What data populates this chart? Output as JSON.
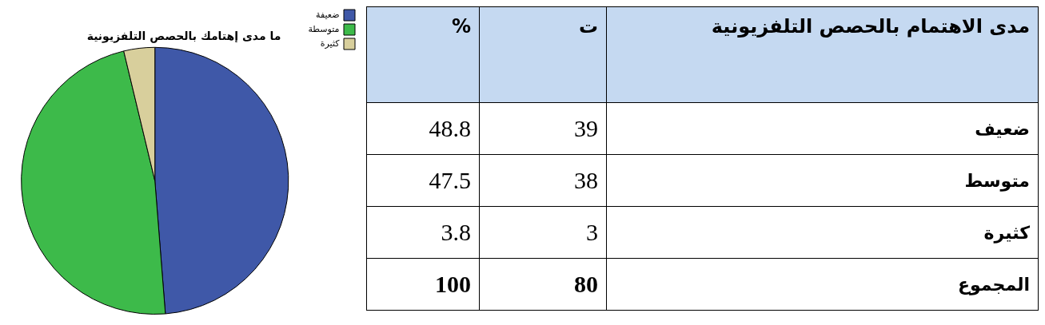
{
  "chart_data": [
    {
      "type": "pie",
      "title": "ما مدى إهتامك بالحصص التلفزيونية",
      "categories": [
        "ضعيفة",
        "متوسطة",
        "كثيرة"
      ],
      "values": [
        48.75,
        47.5,
        3.75
      ],
      "colors": [
        "#3f58a8",
        "#3dba4a",
        "#d8cf9c"
      ],
      "legend": "top right"
    },
    {
      "type": "other",
      "title": "مدى الاهتمام بالحصص التلفزيونية",
      "categories": [
        "ضعيف",
        "متوسط",
        "كثيرة",
        "المجموع"
      ],
      "series": [
        {
          "name": "ت",
          "values": [
            39,
            38,
            3,
            80
          ]
        },
        {
          "name": "%",
          "values": [
            48.8,
            47.5,
            3.8,
            100
          ]
        }
      ],
      "data_labels": true
    }
  ]
}
